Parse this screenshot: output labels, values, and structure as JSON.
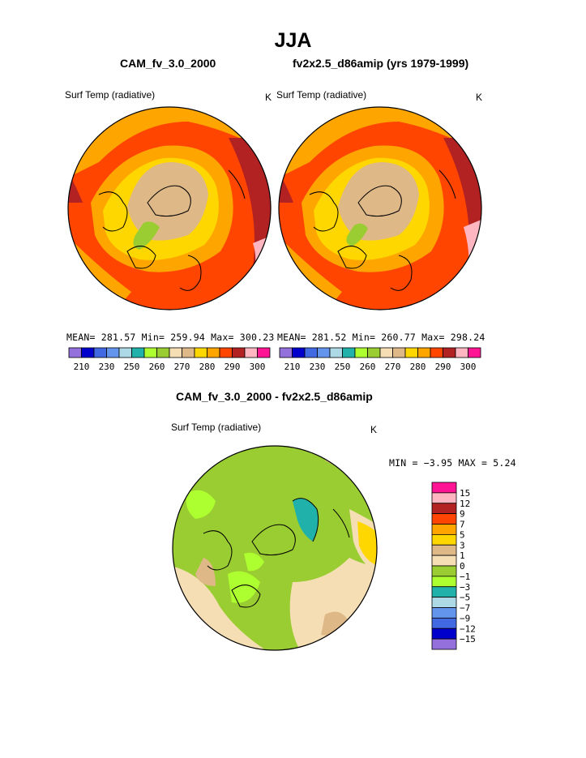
{
  "title": "JJA",
  "panel1": {
    "case": "CAM_fv_3.0_2000",
    "variable": "Surf Temp (radiative)",
    "units": "K",
    "stats": "MEAN= 281.57  Min= 259.94  Max= 300.23"
  },
  "panel2": {
    "case": "fv2x2.5_d86amip (yrs 1979-1999)",
    "variable": "Surf Temp (radiative)",
    "units": "K",
    "stats": "MEAN= 281.52  Min= 260.77  Max= 298.24"
  },
  "diff": {
    "title": "CAM_fv_3.0_2000 - fv2x2.5_d86amip",
    "variable": "Surf Temp (radiative)",
    "units": "K",
    "minmax": "MIN =  −3.95 MAX =   5.24"
  },
  "colorbar_abs": {
    "labels": [
      "210",
      "230",
      "250",
      "260",
      "270",
      "280",
      "290",
      "300"
    ],
    "colors": [
      "#9370db",
      "#0000cd",
      "#4169e1",
      "#6495ed",
      "#add8e6",
      "#20b2aa",
      "#adff2f",
      "#9acd32",
      "#f5deb3",
      "#deb887",
      "#ffd700",
      "#ffa500",
      "#ff4500",
      "#b22222",
      "#ffb6c1",
      "#ff1493"
    ]
  },
  "colorbar_diff": {
    "labels": [
      "15",
      "12",
      "9",
      "7",
      "5",
      "3",
      "1",
      "0",
      "−1",
      "−3",
      "−5",
      "−7",
      "−9",
      "−12",
      "−15"
    ],
    "colors": [
      "#ff1493",
      "#ffb6c1",
      "#b22222",
      "#ff4500",
      "#ffa500",
      "#ffd700",
      "#deb887",
      "#f5deb3",
      "#9acd32",
      "#adff2f",
      "#20b2aa",
      "#add8e6",
      "#6495ed",
      "#4169e1",
      "#0000cd",
      "#9370db"
    ]
  }
}
